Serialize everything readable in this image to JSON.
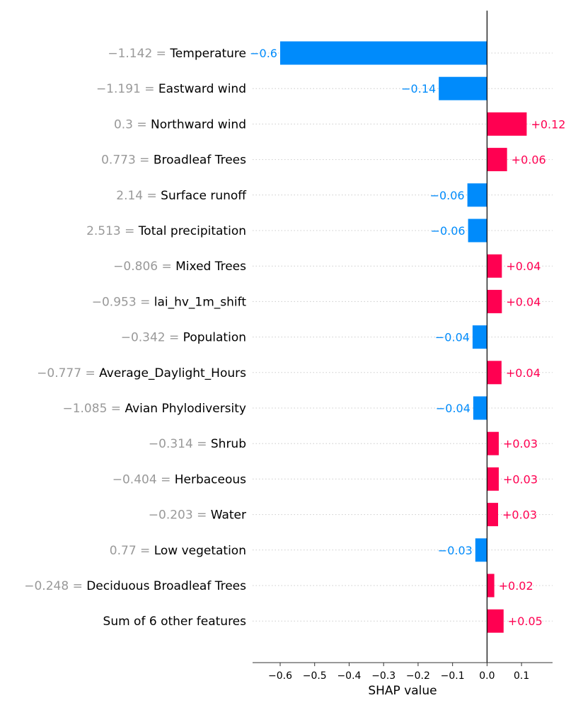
{
  "chart_data": {
    "type": "bar",
    "orientation": "horizontal",
    "xlabel": "SHAP value",
    "xlim": [
      -0.68,
      0.19
    ],
    "xticks": [
      -0.6,
      -0.5,
      -0.4,
      -0.3,
      -0.2,
      -0.1,
      0.0,
      0.1
    ],
    "xtick_labels": [
      "−0.6",
      "−0.5",
      "−0.4",
      "−0.3",
      "−0.2",
      "−0.1",
      "0.0",
      "0.1"
    ],
    "grid": "dotted horizontal lines per row",
    "features": [
      {
        "value_prefix": "−1.142 = ",
        "name": "Temperature",
        "shap": -0.6,
        "label": "−0.6"
      },
      {
        "value_prefix": "−1.191 = ",
        "name": "Eastward wind",
        "shap": -0.14,
        "label": "−0.14"
      },
      {
        "value_prefix": "0.3 = ",
        "name": "Northward wind",
        "shap": 0.115,
        "label": "+0.12"
      },
      {
        "value_prefix": "0.773 = ",
        "name": "Broadleaf Trees",
        "shap": 0.058,
        "label": "+0.06"
      },
      {
        "value_prefix": "2.14 = ",
        "name": "Surface runoff",
        "shap": -0.057,
        "label": "−0.06"
      },
      {
        "value_prefix": "2.513 = ",
        "name": "Total precipitation",
        "shap": -0.055,
        "label": "−0.06"
      },
      {
        "value_prefix": "−0.806 = ",
        "name": "Mixed Trees",
        "shap": 0.043,
        "label": "+0.04"
      },
      {
        "value_prefix": "−0.953 = ",
        "name": "lai_hv_1m_shift",
        "shap": 0.043,
        "label": "+0.04"
      },
      {
        "value_prefix": "−0.342 = ",
        "name": "Population",
        "shap": -0.042,
        "label": "−0.04"
      },
      {
        "value_prefix": "−0.777 = ",
        "name": "Average_Daylight_Hours",
        "shap": 0.042,
        "label": "+0.04"
      },
      {
        "value_prefix": "−1.085 = ",
        "name": "Avian Phylodiversity",
        "shap": -0.04,
        "label": "−0.04"
      },
      {
        "value_prefix": "−0.314 = ",
        "name": "Shrub",
        "shap": 0.034,
        "label": "+0.03"
      },
      {
        "value_prefix": "−0.404 = ",
        "name": "Herbaceous",
        "shap": 0.034,
        "label": "+0.03"
      },
      {
        "value_prefix": "−0.203 = ",
        "name": "Water",
        "shap": 0.032,
        "label": "+0.03"
      },
      {
        "value_prefix": "0.77 = ",
        "name": "Low vegetation",
        "shap": -0.034,
        "label": "−0.03"
      },
      {
        "value_prefix": "−0.248 = ",
        "name": "Deciduous Broadleaf Trees",
        "shap": 0.021,
        "label": "+0.02"
      },
      {
        "value_prefix": "",
        "name": "Sum of 6 other features",
        "shap": 0.048,
        "label": "+0.05"
      }
    ]
  },
  "colors": {
    "positive": "#ff0051",
    "negative": "#008bfb",
    "feature_value": "#999999",
    "feature_name": "#000000",
    "axis": "#333333",
    "grid": "#cccccc"
  }
}
